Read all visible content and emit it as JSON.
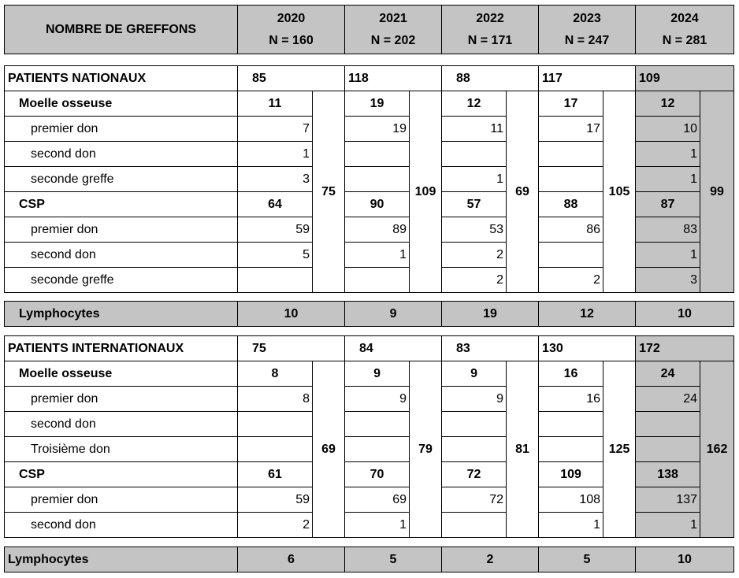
{
  "header": {
    "title": "NOMBRE DE GREFFONS",
    "years": [
      {
        "year": "2020",
        "n": "N = 160"
      },
      {
        "year": "2021",
        "n": "N = 202"
      },
      {
        "year": "2022",
        "n": "N = 171"
      },
      {
        "year": "2023",
        "n": "N = 247"
      },
      {
        "year": "2024",
        "n": "N = 281"
      }
    ]
  },
  "nationaux": {
    "title": "PATIENTS NATIONAUX",
    "totals": [
      "85",
      "118",
      "88",
      "117",
      "109"
    ],
    "moelle": {
      "label": "Moelle osseuse",
      "values": [
        "11",
        "19",
        "12",
        "17",
        "12"
      ]
    },
    "moelle_rows": [
      {
        "label": "premier don",
        "values": [
          "7",
          "19",
          "11",
          "17",
          "10"
        ]
      },
      {
        "label": "second don",
        "values": [
          "1",
          "",
          "",
          "",
          "1"
        ]
      },
      {
        "label": "seconde greffe",
        "values": [
          "3",
          "",
          "1",
          "",
          "1"
        ]
      }
    ],
    "csp": {
      "label": "CSP",
      "values": [
        "64",
        "90",
        "57",
        "88",
        "87"
      ]
    },
    "csp_rows": [
      {
        "label": "premier don",
        "values": [
          "59",
          "89",
          "53",
          "86",
          "83"
        ]
      },
      {
        "label": "second don",
        "values": [
          "5",
          "1",
          "2",
          "",
          "1"
        ]
      },
      {
        "label": "seconde greffe",
        "values": [
          "",
          "",
          "2",
          "2",
          "3"
        ]
      }
    ],
    "subtotals": [
      "75",
      "109",
      "69",
      "105",
      "99"
    ]
  },
  "lymphocytes_nationaux": {
    "label": "Lymphocytes",
    "values": [
      "10",
      "9",
      "19",
      "12",
      "10"
    ]
  },
  "internationaux": {
    "title": "PATIENTS INTERNATIONAUX",
    "totals": [
      "75",
      "84",
      "83",
      "130",
      "172"
    ],
    "moelle": {
      "label": "Moelle osseuse",
      "values": [
        "8",
        "9",
        "9",
        "16",
        "24"
      ]
    },
    "moelle_rows": [
      {
        "label": "premier don",
        "values": [
          "8",
          "9",
          "9",
          "16",
          "24"
        ]
      },
      {
        "label": "second don",
        "values": [
          "",
          "",
          "",
          "",
          ""
        ]
      },
      {
        "label": "Troisième don",
        "values": [
          "",
          "",
          "",
          "",
          ""
        ]
      }
    ],
    "csp": {
      "label": "CSP",
      "values": [
        "61",
        "70",
        "72",
        "109",
        "138"
      ]
    },
    "csp_rows": [
      {
        "label": "premier don",
        "values": [
          "59",
          "69",
          "72",
          "108",
          "137"
        ]
      },
      {
        "label": "second don",
        "values": [
          "2",
          "1",
          "",
          "1",
          "1"
        ]
      }
    ],
    "subtotals": [
      "69",
      "79",
      "81",
      "125",
      "162"
    ]
  },
  "lymphocytes_internationaux": {
    "label": "Lymphocytes",
    "values": [
      "6",
      "5",
      "2",
      "5",
      "10"
    ]
  }
}
